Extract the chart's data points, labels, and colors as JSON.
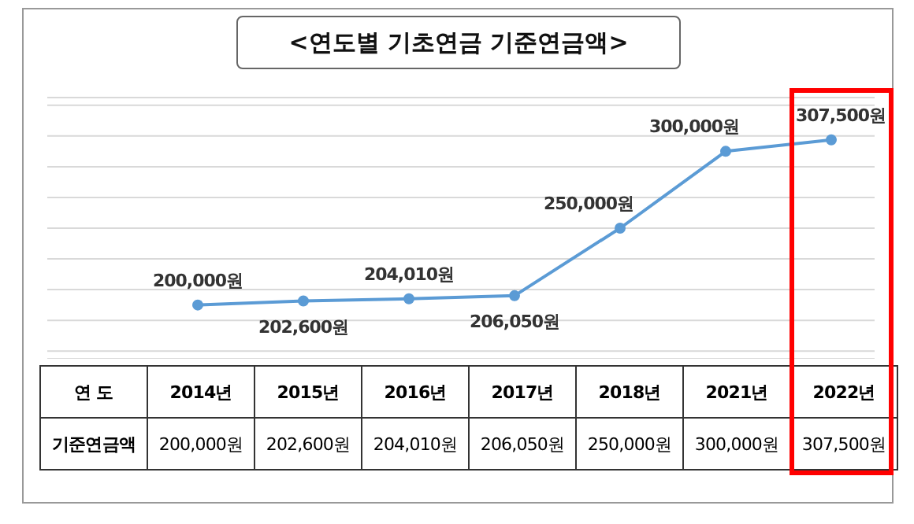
{
  "chart_data": {
    "type": "line",
    "title": "<연도별 기초연금 기준연금액>",
    "categories": [
      "2014년",
      "2015년",
      "2016년",
      "2017년",
      "2018년",
      "2021년",
      "2022년"
    ],
    "series": [
      {
        "color": "#5b9bd5",
        "values": [
          200000,
          202600,
          204010,
          206050,
          250000,
          300000,
          307500
        ],
        "value_labels": [
          "200,000원",
          "202,600원",
          "204,010원",
          "206,050원",
          "250,000원",
          "300,000원",
          "307,500원"
        ]
      }
    ],
    "annotations": [
      "연 도",
      "기준연금액"
    ],
    "ylim": [
      165000,
      335000
    ],
    "yticks": [
      {
        "value": 170000,
        "label": null
      },
      {
        "value": 190000,
        "label": null
      },
      {
        "value": 210000,
        "label": null
      },
      {
        "value": 230000,
        "label": null
      },
      {
        "value": 250000,
        "label": null
      },
      {
        "value": 270000,
        "label": null
      },
      {
        "value": 290000,
        "label": null
      },
      {
        "value": 310000,
        "label": null
      },
      {
        "value": 330000,
        "label": null
      }
    ],
    "grid": "y",
    "tick_labels": false,
    "marker": "circle",
    "line_style": "solid",
    "legend": false
  }
}
